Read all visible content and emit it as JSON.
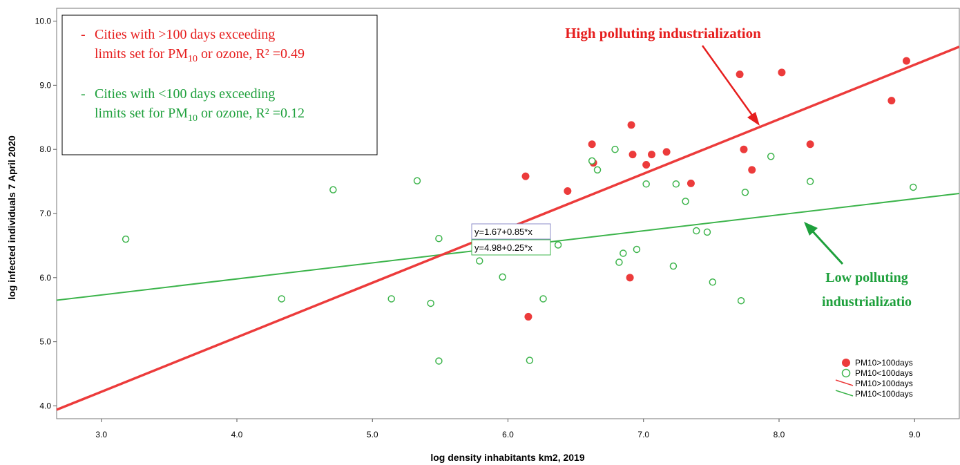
{
  "chart_data": {
    "type": "scatter",
    "xlabel": "log density inhabitants km2, 2019",
    "ylabel": "log infected individuals 7 April 2020",
    "xlim": [
      2.67,
      9.33
    ],
    "ylim": [
      3.8,
      10.2
    ],
    "x_ticks": [
      "3.0",
      "4.0",
      "5.0",
      "6.0",
      "7.0",
      "8.0",
      "9.0"
    ],
    "y_ticks": [
      "4.0",
      "5.0",
      "6.0",
      "7.0",
      "8.0",
      "9.0",
      "10.0"
    ],
    "grid": false,
    "legend_position": "bottom-right",
    "series": [
      {
        "name": "PM10>100days",
        "marker": "filled-circle",
        "color": "#ec3b3b",
        "points": [
          [
            6.13,
            7.58
          ],
          [
            6.15,
            5.39
          ],
          [
            6.44,
            7.35
          ],
          [
            6.62,
            8.08
          ],
          [
            6.63,
            7.79
          ],
          [
            6.91,
            8.38
          ],
          [
            6.92,
            7.92
          ],
          [
            6.9,
            6.0
          ],
          [
            7.02,
            7.76
          ],
          [
            7.06,
            7.92
          ],
          [
            7.17,
            7.96
          ],
          [
            7.35,
            7.47
          ],
          [
            7.71,
            9.17
          ],
          [
            7.74,
            8.0
          ],
          [
            7.8,
            7.68
          ],
          [
            8.02,
            9.2
          ],
          [
            8.23,
            8.08
          ],
          [
            8.83,
            8.76
          ],
          [
            8.94,
            9.38
          ]
        ]
      },
      {
        "name": "PM10<100days",
        "marker": "open-circle",
        "color": "#3cb44b",
        "points": [
          [
            3.18,
            6.6
          ],
          [
            4.33,
            5.67
          ],
          [
            4.71,
            7.37
          ],
          [
            5.14,
            5.67
          ],
          [
            5.33,
            7.51
          ],
          [
            5.43,
            5.6
          ],
          [
            5.49,
            6.61
          ],
          [
            5.49,
            4.7
          ],
          [
            5.79,
            6.26
          ],
          [
            5.96,
            6.01
          ],
          [
            6.16,
            4.71
          ],
          [
            6.26,
            5.67
          ],
          [
            6.37,
            6.51
          ],
          [
            6.62,
            7.82
          ],
          [
            6.66,
            7.68
          ],
          [
            6.79,
            8.0
          ],
          [
            6.82,
            6.24
          ],
          [
            6.85,
            6.38
          ],
          [
            6.95,
            6.44
          ],
          [
            7.02,
            7.46
          ],
          [
            7.22,
            6.18
          ],
          [
            7.24,
            7.46
          ],
          [
            7.31,
            7.19
          ],
          [
            7.39,
            6.73
          ],
          [
            7.47,
            6.71
          ],
          [
            7.51,
            5.93
          ],
          [
            7.72,
            5.64
          ],
          [
            7.75,
            7.33
          ],
          [
            7.94,
            7.89
          ],
          [
            8.23,
            7.5
          ],
          [
            8.99,
            7.41
          ]
        ]
      }
    ],
    "fit_lines": [
      {
        "name": "PM10>100days",
        "intercept": 1.67,
        "slope": 0.85,
        "color": "#ec3b3b",
        "equation": "y=1.67+0.85*x"
      },
      {
        "name": "PM10<100days",
        "intercept": 4.98,
        "slope": 0.25,
        "color": "#3cb44b",
        "equation": "y=4.98+0.25*x"
      }
    ],
    "legend": [
      {
        "label": "PM10>100days",
        "kind": "filled-circle",
        "color": "#ec3b3b"
      },
      {
        "label": "PM10<100days",
        "kind": "open-circle",
        "color": "#3cb44b"
      },
      {
        "label": "PM10>100days",
        "kind": "line",
        "color": "#ec3b3b"
      },
      {
        "label": "PM10<100days",
        "kind": "line",
        "color": "#3cb44b"
      }
    ],
    "annotations": {
      "box": {
        "high_line1": "Cities with >100 days exceeding",
        "high_line2_pre": "limits set for PM",
        "high_line2_sub": "10",
        "high_line2_post": " or ozone, R² =0.49",
        "low_line1": "Cities with <100 days exceeding",
        "low_line2_pre": "limits set for PM",
        "low_line2_sub": "10",
        "low_line2_post": " or ozone, R² =0.12",
        "bullet": "-"
      },
      "high_label": "High polluting industrialization",
      "low_label_line1": "Low polluting",
      "low_label_line2": "industrializatio",
      "high_color": "#e61e1e",
      "low_color": "#1ea03c"
    }
  }
}
